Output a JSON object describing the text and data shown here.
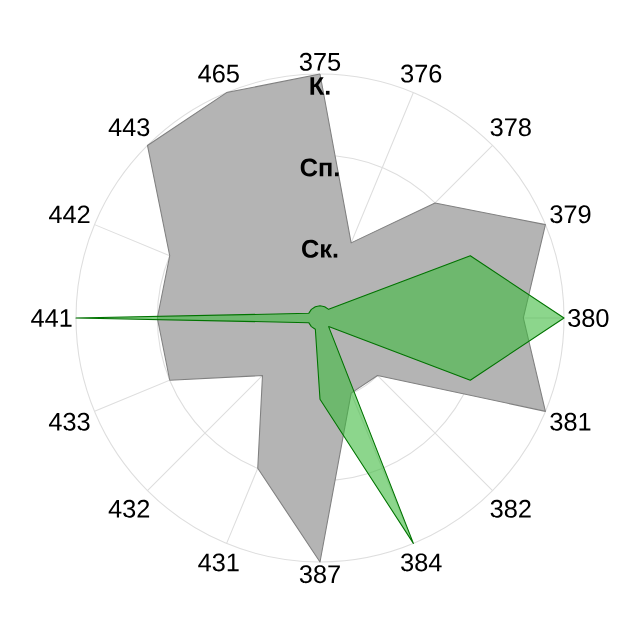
{
  "chart_data": {
    "type": "radar",
    "categories": [
      "375",
      "376",
      "378",
      "379",
      "380",
      "381",
      "382",
      "384",
      "387",
      "431",
      "432",
      "433",
      "441",
      "442",
      "443",
      "465"
    ],
    "series": [
      {
        "color": "#b4b4b4",
        "values": [
          3,
          1,
          2,
          3,
          2.5,
          3,
          1,
          1,
          3,
          2,
          1,
          2,
          2,
          2,
          3,
          3
        ]
      },
      {
        "color": "#3fbb3f",
        "values": [
          0.15,
          0.15,
          0.15,
          2,
          3,
          2,
          0.15,
          3,
          1,
          0.15,
          0.15,
          0.15,
          3,
          0.15,
          0.15,
          0.15
        ]
      }
    ],
    "ylim": [
      0,
      3
    ],
    "yticks": [
      {
        "value": 1,
        "label": "Ск."
      },
      {
        "value": 2,
        "label": "Сп."
      },
      {
        "value": 3,
        "label": "К."
      }
    ],
    "grid": true
  }
}
